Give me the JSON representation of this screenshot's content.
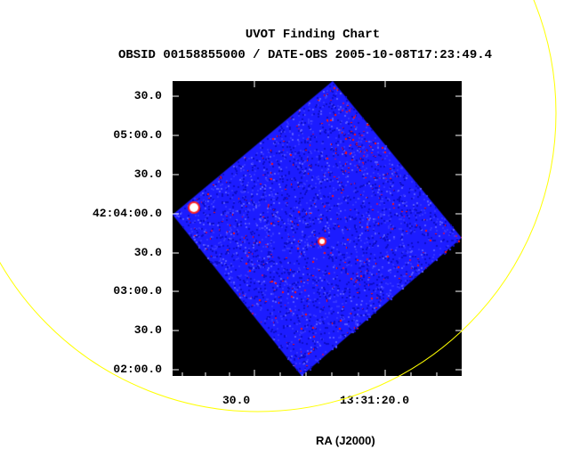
{
  "title": {
    "line1": "UVOT Finding Chart",
    "line2": "OBSID 00158855000 / DATE-OBS 2005-10-08T17:23:49.4"
  },
  "axes": {
    "x_label": "RA (J2000)",
    "x_ticks": [
      "30.0",
      "13:31:20.0"
    ],
    "y_ticks": [
      "30.0",
      "05:00.0",
      "30.0",
      "42:04:00.0",
      "30.0",
      "03:00.0",
      "30.0",
      "02:00.0"
    ]
  },
  "colors": {
    "background": "#000000",
    "field": "#1c1cff",
    "noise": "#ff1010",
    "source": "#ffffff",
    "circle": "#ffff00"
  }
}
